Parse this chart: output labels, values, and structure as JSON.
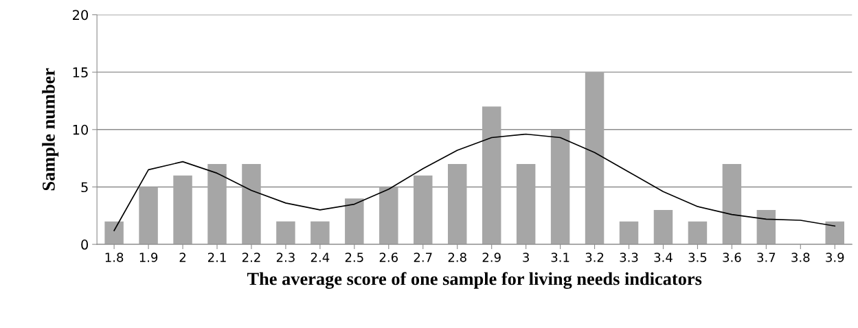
{
  "chart_data": {
    "type": "bar",
    "xlabel": "The average score of one sample for living needs indicators",
    "ylabel": "Sample number",
    "categories": [
      "1.8",
      "1.9",
      "2",
      "2.1",
      "2.2",
      "2.3",
      "2.4",
      "2.5",
      "2.6",
      "2.7",
      "2.8",
      "2.9",
      "3",
      "3.1",
      "3.2",
      "3.3",
      "3.4",
      "3.5",
      "3.6",
      "3.7",
      "3.8",
      "3.9"
    ],
    "series": [
      {
        "color": "#a6a6a6",
        "values": [
          2,
          5,
          6,
          7,
          7,
          2,
          2,
          4,
          5,
          6,
          7,
          12,
          7,
          10,
          15,
          2,
          3,
          2,
          7,
          3,
          0,
          2
        ]
      },
      {
        "type": "line",
        "color": "#000000",
        "values": [
          1.2,
          6.5,
          7.2,
          6.2,
          4.7,
          3.6,
          3.0,
          3.5,
          4.8,
          6.6,
          8.2,
          9.3,
          9.6,
          9.3,
          8.0,
          6.3,
          4.6,
          3.3,
          2.6,
          2.2,
          2.1,
          1.6
        ]
      }
    ],
    "ylim": [
      0,
      20
    ],
    "yticks": [
      0,
      5,
      10,
      15,
      20
    ],
    "grid": "y",
    "marker": "none",
    "line_style": "solid"
  }
}
